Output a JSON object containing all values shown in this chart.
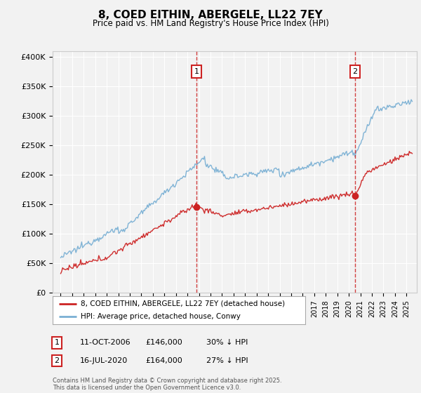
{
  "title": "8, COED EITHIN, ABERGELE, LL22 7EY",
  "subtitle": "Price paid vs. HM Land Registry's House Price Index (HPI)",
  "legend_line1": "8, COED EITHIN, ABERGELE, LL22 7EY (detached house)",
  "legend_line2": "HPI: Average price, detached house, Conwy",
  "sale1_date": "11-OCT-2006",
  "sale1_price": "£146,000",
  "sale1_hpi": "30% ↓ HPI",
  "sale2_date": "16-JUL-2020",
  "sale2_price": "£164,000",
  "sale2_hpi": "27% ↓ HPI",
  "footnote": "Contains HM Land Registry data © Crown copyright and database right 2025.\nThis data is licensed under the Open Government Licence v3.0.",
  "hpi_color": "#7ab0d4",
  "price_color": "#cc2222",
  "vline_color": "#cc2222",
  "background_color": "#f2f2f2",
  "plot_bg": "#f2f2f2",
  "ylim": [
    0,
    410000
  ],
  "xlim_left": 1994.3,
  "xlim_right": 2025.9,
  "sale1_x": 2006.78,
  "sale1_y": 146000,
  "sale2_x": 2020.54,
  "sale2_y": 164000
}
